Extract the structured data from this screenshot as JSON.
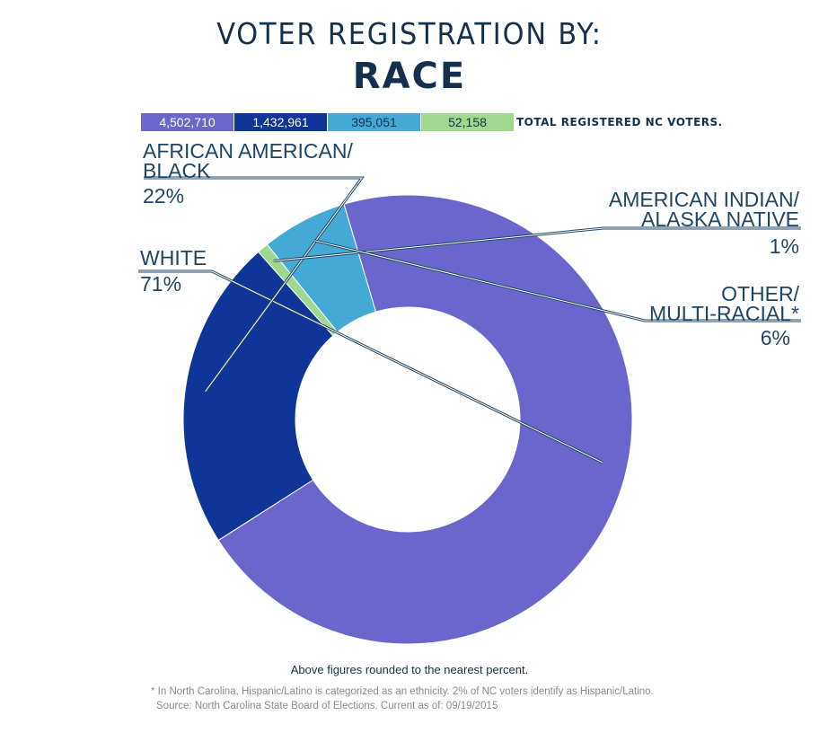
{
  "title": {
    "line1": "VOTER REGISTRATION BY:",
    "line2": "RACE"
  },
  "totals": {
    "segments": [
      {
        "value": "4,502,710",
        "color": "#6a66cc",
        "text_color": "#ffffff"
      },
      {
        "value": "1,432,961",
        "color": "#0e3597",
        "text_color": "#ffffff"
      },
      {
        "value": "395,051",
        "color": "#45a9d5",
        "text_color": "#15304d"
      },
      {
        "value": "52,158",
        "color": "#9fd88e",
        "text_color": "#15304d"
      }
    ],
    "caption": "TOTAL REGISTERED NC VOTERS."
  },
  "chart_data": {
    "type": "pie",
    "donut": true,
    "categories": [
      "WHITE",
      "AFRICAN AMERICAN/ BLACK",
      "AMERICAN INDIAN/ ALASKA NATIVE",
      "OTHER/ MULTI-RACIAL*"
    ],
    "values": [
      4502710,
      1432961,
      52158,
      395051
    ],
    "percent_labels": [
      "71%",
      "22%",
      "1%",
      "6%"
    ],
    "colors": [
      "#6a66cc",
      "#0e3597",
      "#9fd88e",
      "#45a9d5"
    ],
    "labels": [
      {
        "lines": [
          "WHITE"
        ],
        "pct": "71%"
      },
      {
        "lines": [
          "AFRICAN AMERICAN/",
          "BLACK"
        ],
        "pct": "22%"
      },
      {
        "lines": [
          "AMERICAN INDIAN/",
          "ALASKA NATIVE"
        ],
        "pct": "1%"
      },
      {
        "lines": [
          "OTHER/",
          "MULTI-RACIAL*"
        ],
        "pct": "6%"
      }
    ]
  },
  "notes": {
    "rounded": "Above figures rounded to the nearest percent.",
    "footnote_line1": "* In North Carolina, Hispanic/Latino is categorized as an ethnicity. 2% of NC voters identify as Hispanic/Latino.",
    "footnote_line2": "Source: North Carolina State Board of Elections. Current as of: 09/19/2015"
  }
}
